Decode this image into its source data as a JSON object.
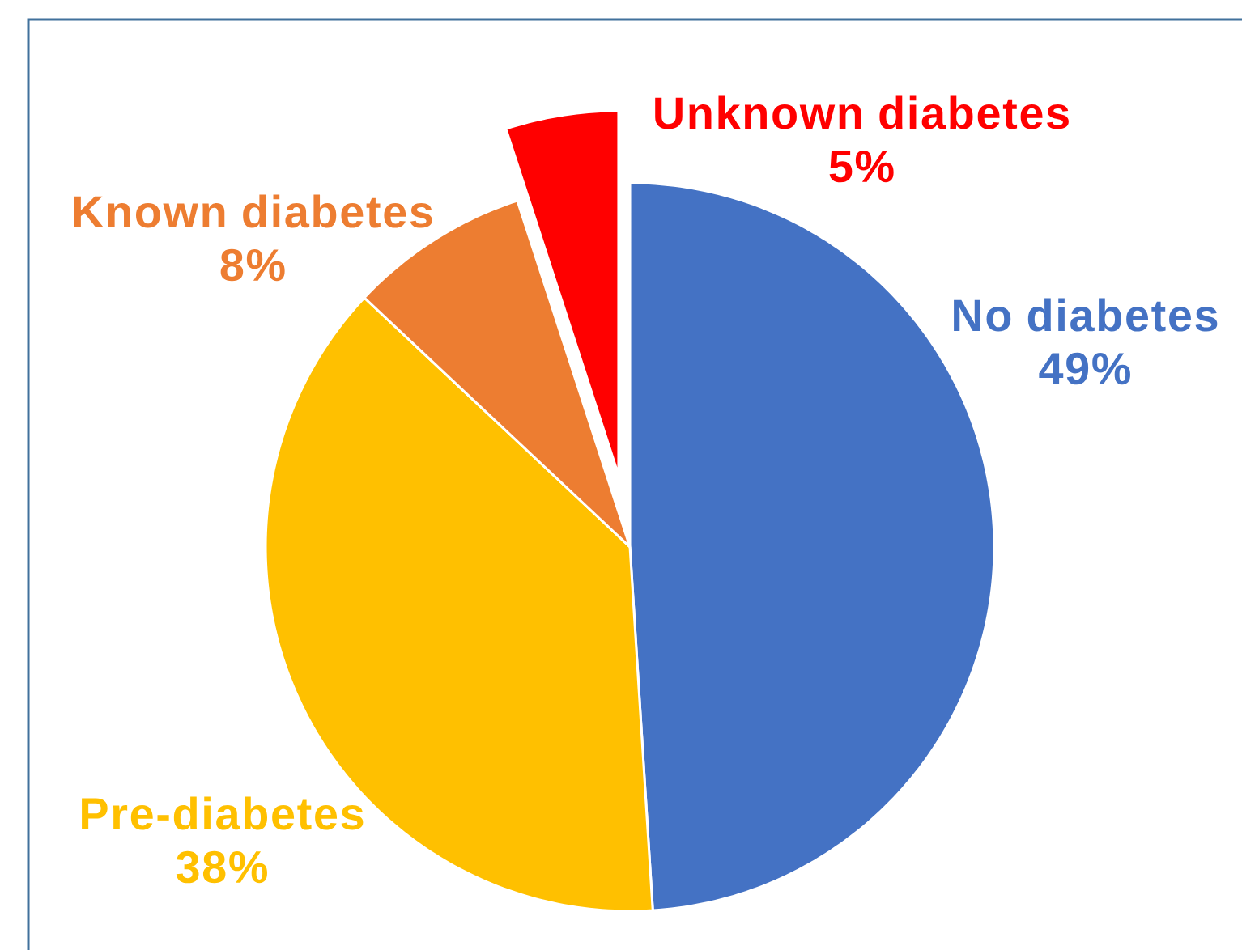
{
  "chart_data": {
    "type": "pie",
    "categories": [
      "No diabetes",
      "Pre-diabetes",
      "Known diabetes",
      "Unknown diabetes"
    ],
    "values": [
      49,
      38,
      8,
      5
    ],
    "colors": [
      "#4472c4",
      "#ffc000",
      "#ed7d31",
      "#ff0000"
    ],
    "value_labels": [
      "49%",
      "38%",
      "8%",
      "5%"
    ]
  }
}
